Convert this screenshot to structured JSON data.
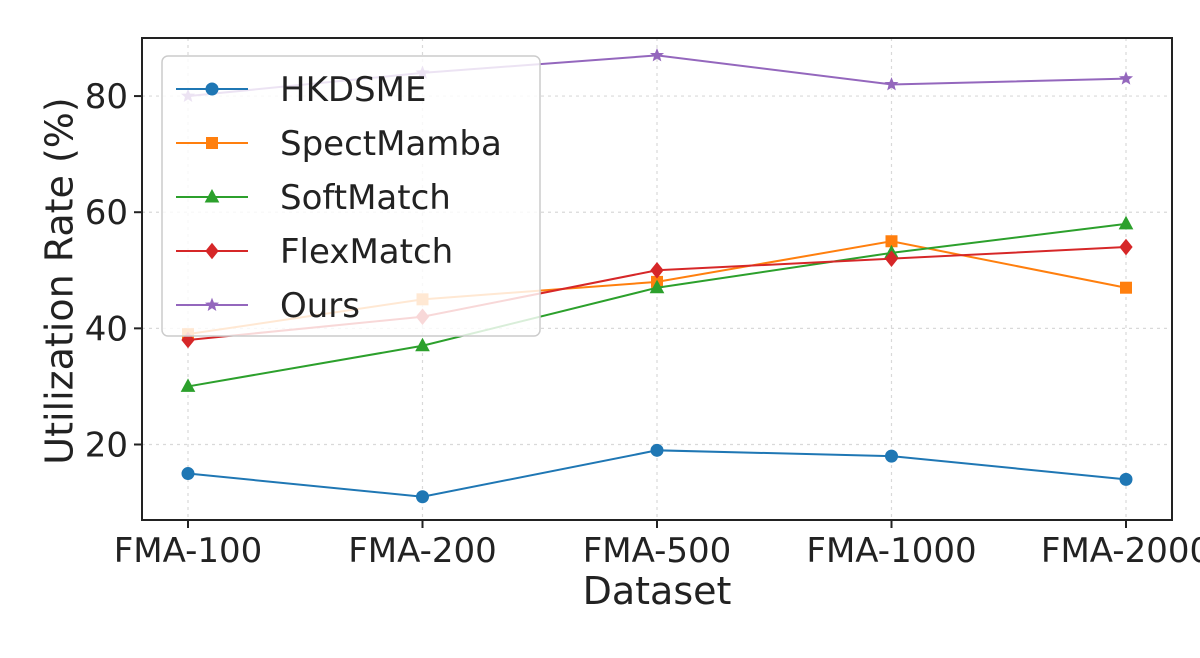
{
  "chart_data": {
    "type": "line",
    "title": "",
    "xlabel": "Dataset",
    "ylabel": "Utilization Rate (%)",
    "categories": [
      "FMA-100",
      "FMA-200",
      "FMA-500",
      "FMA-1000",
      "FMA-2000"
    ],
    "ylim": [
      7,
      90
    ],
    "yticks": [
      20,
      40,
      60,
      80
    ],
    "grid": true,
    "legend_position": "upper-left",
    "series": [
      {
        "name": "HKDSME",
        "color": "#1f77b4",
        "marker": "circle",
        "values": [
          15,
          11,
          19,
          18,
          14
        ]
      },
      {
        "name": "SpectMamba",
        "color": "#ff7f0e",
        "marker": "square",
        "values": [
          39,
          45,
          48,
          55,
          47
        ]
      },
      {
        "name": "SoftMatch",
        "color": "#2ca02c",
        "marker": "triangle",
        "values": [
          30,
          37,
          47,
          53,
          58
        ]
      },
      {
        "name": "FlexMatch",
        "color": "#d62728",
        "marker": "diamond",
        "values": [
          38,
          42,
          50,
          52,
          54
        ]
      },
      {
        "name": "Ours",
        "color": "#9467bd",
        "marker": "star",
        "values": [
          80,
          84,
          87,
          82,
          83
        ]
      }
    ]
  }
}
